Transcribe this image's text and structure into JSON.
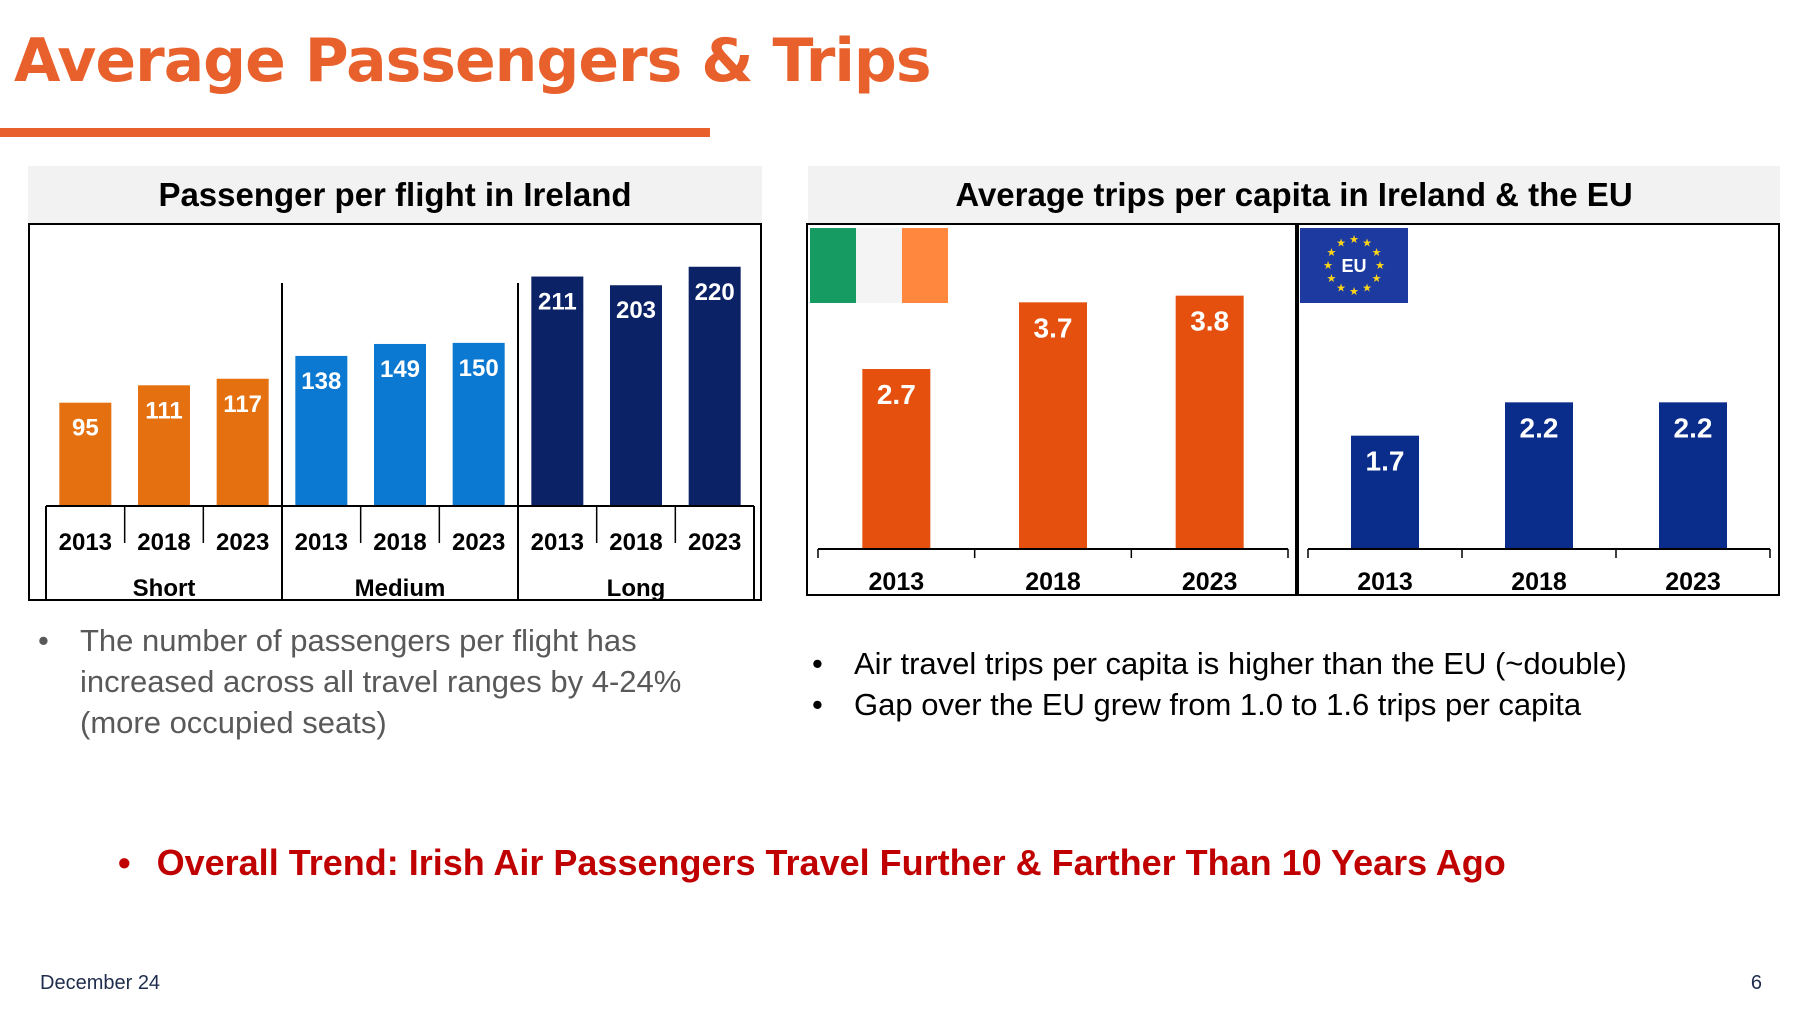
{
  "slide": {
    "title": "Average Passengers & Trips",
    "footer_date": "December 24",
    "page_number": "6"
  },
  "left_panel": {
    "heading": "Passenger per flight in Ireland",
    "bullets": [
      "The number of passengers per flight has increased across all travel ranges by 4-24% (more occupied seats)"
    ]
  },
  "right_panel": {
    "heading": "Average trips per capita in Ireland & the EU",
    "eu_flag_label": "EU",
    "bullets": [
      "Air travel trips per capita is higher than the EU (~double)",
      "Gap over the EU grew from 1.0 to 1.6 trips per capita"
    ]
  },
  "trend": "Overall Trend: Irish Air Passengers Travel Further & Farther Than 10 Years Ago",
  "colors": {
    "accent": "#e8612c",
    "short": "#e5700f",
    "medium": "#0b78d1",
    "long": "#0b2266",
    "ireland_bar": "#e5500e",
    "eu_bar": "#0a2c8a",
    "trend_text": "#c00000"
  },
  "chart_data": [
    {
      "type": "bar",
      "title": "Passenger per flight in Ireland",
      "groups": [
        {
          "name": "Short",
          "categories": [
            "2013",
            "2018",
            "2023"
          ],
          "values": [
            95,
            111,
            117
          ]
        },
        {
          "name": "Medium",
          "categories": [
            "2013",
            "2018",
            "2023"
          ],
          "values": [
            138,
            149,
            150
          ]
        },
        {
          "name": "Long",
          "categories": [
            "2013",
            "2018",
            "2023"
          ],
          "values": [
            211,
            203,
            220
          ]
        }
      ],
      "ylim": [
        0,
        240
      ],
      "grid": false,
      "data_labels": true
    },
    {
      "type": "bar",
      "title": "Average trips per capita in Ireland & the EU",
      "panels": [
        {
          "region": "Ireland",
          "categories": [
            "2013",
            "2018",
            "2023"
          ],
          "values": [
            2.7,
            3.7,
            3.8
          ]
        },
        {
          "region": "EU",
          "categories": [
            "2013",
            "2018",
            "2023"
          ],
          "values": [
            1.7,
            2.2,
            2.2
          ]
        }
      ],
      "ylim": [
        0,
        4.5
      ],
      "grid": false,
      "data_labels": true
    }
  ]
}
